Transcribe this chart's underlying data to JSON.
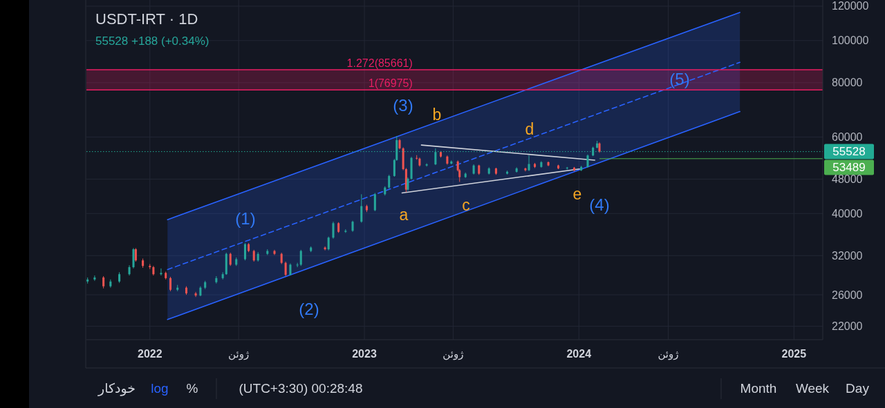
{
  "chart_data": {
    "type": "candlestick",
    "title": "USDT-IRT · 1D",
    "subtitle": "55528 +188 (+0.34%)",
    "x": [
      "2021-09-17",
      "2021-09-29",
      "2021-10-14",
      "2021-10-26",
      "2021-11-10",
      "2021-11-27",
      "2021-12-04",
      "2021-12-08",
      "2021-12-20",
      "2022-01-01",
      "2022-01-07",
      "2022-01-20",
      "2022-01-28",
      "2022-02-05",
      "2022-02-17",
      "2022-03-04",
      "2022-03-20",
      "2022-03-28",
      "2022-04-05",
      "2022-04-24",
      "2022-05-05",
      "2022-05-11",
      "2022-05-18",
      "2022-05-28",
      "2022-06-12",
      "2022-06-18",
      "2022-06-27",
      "2022-07-04",
      "2022-07-20",
      "2022-08-01",
      "2022-08-13",
      "2022-08-20",
      "2022-08-28",
      "2022-09-09",
      "2022-09-15",
      "2022-10-02",
      "2022-10-26",
      "2022-11-01",
      "2022-11-09",
      "2022-11-18",
      "2022-11-30",
      "2022-12-12",
      "2022-12-27",
      "2023-01-05",
      "2023-01-19",
      "2023-02-05",
      "2023-02-12",
      "2023-02-21",
      "2023-02-25",
      "2023-03-02",
      "2023-03-08",
      "2023-03-13",
      "2023-03-16",
      "2023-03-22",
      "2023-03-31",
      "2023-04-05",
      "2023-04-17",
      "2023-05-02",
      "2023-05-11",
      "2023-05-22",
      "2023-05-29",
      "2023-06-09",
      "2023-06-12",
      "2023-06-22",
      "2023-07-06",
      "2023-07-15",
      "2023-08-01",
      "2023-08-13",
      "2023-09-01",
      "2023-09-17",
      "2023-10-02",
      "2023-10-08",
      "2023-10-18",
      "2023-10-29",
      "2023-11-10",
      "2023-11-27",
      "2023-12-12",
      "2023-12-24",
      "2024-01-05",
      "2024-01-16",
      "2024-01-25",
      "2024-02-01",
      "2024-02-05"
    ],
    "ohlc": [
      [
        27900,
        28500,
        27600,
        28200
      ],
      [
        28200,
        28800,
        28000,
        28500
      ],
      [
        28500,
        28700,
        26900,
        27200
      ],
      [
        27200,
        28200,
        27000,
        27900
      ],
      [
        27900,
        29300,
        27700,
        29000
      ],
      [
        29000,
        30400,
        28800,
        30100
      ],
      [
        30100,
        33300,
        29900,
        33100
      ],
      [
        33100,
        33300,
        31000,
        31200
      ],
      [
        31200,
        31500,
        30000,
        30300
      ],
      [
        30300,
        30600,
        29800,
        30100
      ],
      [
        30100,
        30300,
        28800,
        29000
      ],
      [
        29000,
        29900,
        28800,
        29200
      ],
      [
        29200,
        29400,
        28200,
        28400
      ],
      [
        28400,
        28600,
        26500,
        26700
      ],
      [
        26700,
        27400,
        26500,
        27000
      ],
      [
        27000,
        27200,
        26000,
        26200
      ],
      [
        26200,
        26400,
        25700,
        25900
      ],
      [
        25900,
        27200,
        25800,
        27000
      ],
      [
        27000,
        28000,
        26800,
        27800
      ],
      [
        27800,
        28700,
        27600,
        28400
      ],
      [
        28400,
        29300,
        28200,
        29000
      ],
      [
        29000,
        32500,
        28900,
        32300
      ],
      [
        32300,
        32500,
        30300,
        30500
      ],
      [
        30500,
        31700,
        30300,
        31400
      ],
      [
        31400,
        34200,
        31200,
        34000
      ],
      [
        34000,
        34200,
        32600,
        32800
      ],
      [
        32800,
        33000,
        31000,
        31200
      ],
      [
        31200,
        32600,
        31000,
        32300
      ],
      [
        32300,
        33100,
        32100,
        32800
      ],
      [
        32800,
        33000,
        32100,
        32300
      ],
      [
        32300,
        32500,
        30600,
        30800
      ],
      [
        30800,
        31000,
        28700,
        28900
      ],
      [
        28900,
        30700,
        28800,
        30500
      ],
      [
        30500,
        30800,
        30100,
        30500
      ],
      [
        30500,
        33000,
        30300,
        32800
      ],
      [
        32800,
        33600,
        32600,
        33400
      ],
      [
        33400,
        33600,
        32900,
        33100
      ],
      [
        33100,
        35400,
        32900,
        35200
      ],
      [
        35200,
        38300,
        35000,
        38000
      ],
      [
        38000,
        38200,
        36100,
        36300
      ],
      [
        36300,
        36800,
        36100,
        36500
      ],
      [
        36500,
        38500,
        36300,
        38300
      ],
      [
        38300,
        44300,
        38100,
        41600
      ],
      [
        41600,
        41900,
        40300,
        40700
      ],
      [
        40700,
        44600,
        40500,
        44300
      ],
      [
        44300,
        46200,
        44000,
        45900
      ],
      [
        45900,
        49100,
        45700,
        48800
      ],
      [
        48800,
        53400,
        48600,
        53100
      ],
      [
        53100,
        60300,
        52900,
        59000
      ],
      [
        59000,
        59400,
        56200,
        56500
      ],
      [
        56500,
        56800,
        50300,
        50600
      ],
      [
        50600,
        50900,
        44800,
        45400
      ],
      [
        45400,
        48400,
        45100,
        48100
      ],
      [
        48100,
        54000,
        47900,
        53700
      ],
      [
        53700,
        54500,
        53200,
        53500
      ],
      [
        53500,
        53800,
        51300,
        51600
      ],
      [
        51600,
        52200,
        51300,
        51900
      ],
      [
        51900,
        56500,
        51700,
        55400
      ],
      [
        55400,
        55700,
        53800,
        54100
      ],
      [
        54100,
        54400,
        51800,
        52100
      ],
      [
        52100,
        53000,
        51900,
        52700
      ],
      [
        52700,
        53000,
        50000,
        50300
      ],
      [
        50300,
        50600,
        47300,
        48500
      ],
      [
        48500,
        49700,
        48300,
        49400
      ],
      [
        49400,
        51900,
        49200,
        51600
      ],
      [
        51600,
        51800,
        49100,
        49400
      ],
      [
        49400,
        51100,
        49200,
        50800
      ],
      [
        50800,
        51000,
        49100,
        49400
      ],
      [
        49400,
        50200,
        49200,
        49900
      ],
      [
        49900,
        51100,
        49700,
        50800
      ],
      [
        50800,
        51000,
        50000,
        50300
      ],
      [
        50300,
        54400,
        50100,
        52000
      ],
      [
        52000,
        52300,
        50900,
        51200
      ],
      [
        51200,
        52800,
        51000,
        52500
      ],
      [
        52500,
        52700,
        51400,
        51600
      ],
      [
        51600,
        51800,
        50600,
        50800
      ],
      [
        50800,
        51200,
        50500,
        51000
      ],
      [
        51000,
        51200,
        50000,
        50300
      ],
      [
        50300,
        51500,
        50100,
        51200
      ],
      [
        51200,
        54700,
        51000,
        54400
      ],
      [
        54400,
        57000,
        54200,
        56700
      ],
      [
        56700,
        58800,
        56500,
        58000
      ],
      [
        58000,
        58300,
        55200,
        55528
      ]
    ],
    "colors": [
      "#26a69a",
      "#26a69a",
      "#ef5350",
      "#26a69a",
      "#26a69a",
      "#26a69a",
      "#26a69a",
      "#ef5350",
      "#ef5350",
      "#ef5350",
      "#ef5350",
      "#26a69a",
      "#ef5350",
      "#ef5350",
      "#26a69a",
      "#ef5350",
      "#ef5350",
      "#26a69a",
      "#26a69a",
      "#26a69a",
      "#26a69a",
      "#26a69a",
      "#ef5350",
      "#26a69a",
      "#26a69a",
      "#ef5350",
      "#ef5350",
      "#26a69a",
      "#26a69a",
      "#ef5350",
      "#ef5350",
      "#ef5350",
      "#26a69a",
      "#26a69a",
      "#26a69a",
      "#26a69a",
      "#ef5350",
      "#26a69a",
      "#26a69a",
      "#ef5350",
      "#26a69a",
      "#26a69a",
      "#26a69a",
      "#ef5350",
      "#26a69a",
      "#26a69a",
      "#26a69a",
      "#26a69a",
      "#26a69a",
      "#ef5350",
      "#ef5350",
      "#ef5350",
      "#26a69a",
      "#26a69a",
      "#ef5350",
      "#ef5350",
      "#26a69a",
      "#26a69a",
      "#ef5350",
      "#ef5350",
      "#26a69a",
      "#ef5350",
      "#ef5350",
      "#26a69a",
      "#26a69a",
      "#ef5350",
      "#26a69a",
      "#ef5350",
      "#26a69a",
      "#26a69a",
      "#ef5350",
      "#26a69a",
      "#ef5350",
      "#26a69a",
      "#ef5350",
      "#ef5350",
      "#26a69a",
      "#ef5350",
      "#26a69a",
      "#26a69a",
      "#26a69a",
      "#26a69a",
      "#ef5350"
    ],
    "series": [
      {
        "type": "line",
        "x": [
          "2022-01-31",
          "2024-10-01"
        ],
        "values": [
          29720,
          89140
        ],
        "lower": [
          22810,
          68660
        ],
        "upper": [
          38720,
          116100
        ],
        "color": "#2962ff",
        "line_style": "dashed"
      },
      {
        "type": "line",
        "x": [
          "2022-01-31",
          "2024-10-01"
        ],
        "values": [
          38720,
          116100
        ],
        "color": "#2962ff"
      },
      {
        "type": "line",
        "x": [
          "2022-01-31",
          "2024-10-01"
        ],
        "values": [
          22810,
          68660
        ],
        "color": "#2962ff"
      },
      {
        "type": "line",
        "x": [
          "2023-04-08",
          "2024-01-28"
        ],
        "values": [
          57490,
          53080
        ],
        "color": "#d1d4dc"
      },
      {
        "type": "line",
        "x": [
          "2023-03-06",
          "2024-01-02"
        ],
        "values": [
          44610,
          50640
        ],
        "color": "#d1d4dc"
      }
    ],
    "bands": [
      {
        "axis": "y",
        "from": 76975,
        "to": 85661,
        "color": "#e91e63"
      }
    ],
    "ref_lines": [
      {
        "axis": "y",
        "value": 85661,
        "label": "1.272(85661)",
        "color": "#e91e63"
      },
      {
        "axis": "y",
        "value": 76975,
        "label": "1(76975)",
        "color": "#e91e63"
      },
      {
        "axis": "y",
        "value": 55528,
        "label": "55528",
        "color": "#22ab94",
        "line_style": "dotted"
      },
      {
        "axis": "y",
        "value": 53489,
        "label": "53489",
        "color": "#4caf50"
      }
    ],
    "annotations": [
      "(1)",
      "(2)",
      "(3)",
      "(4)",
      "(5)",
      "a",
      "b",
      "c",
      "d",
      "e",
      "خودکار",
      "log",
      "%",
      "(UTC+3:30) 00:28:48",
      "Month",
      "Week",
      "Day"
    ],
    "log": true,
    "grid": true,
    "xlim": [
      "2021-09-15",
      "2025-02-19"
    ],
    "xticks": [
      {
        "value": "2022-01-01",
        "label": "2022"
      },
      {
        "value": "2022-06-01",
        "label": "ژوئن"
      },
      {
        "value": "2023-01-01",
        "label": "2023"
      },
      {
        "value": "2023-06-01",
        "label": "ژوئن"
      },
      {
        "value": "2024-01-01",
        "label": "2024"
      },
      {
        "value": "2024-06-01",
        "label": "ژوئن"
      },
      {
        "value": "2025-01-01",
        "label": "2025"
      }
    ],
    "ylim": [
      20500,
      124000
    ],
    "yticks": [
      22000,
      26000,
      32000,
      40000,
      48000,
      60000,
      80000,
      100000,
      120000
    ]
  }
}
